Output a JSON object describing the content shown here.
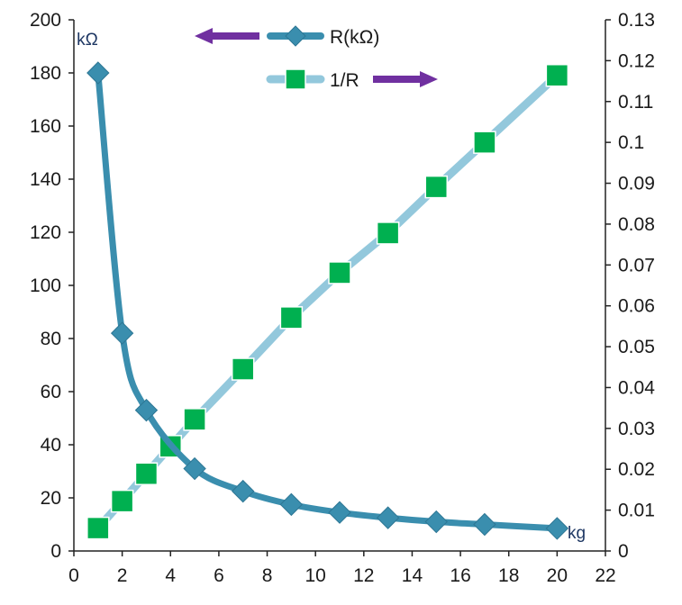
{
  "chart_data": {
    "type": "line",
    "title": "",
    "x_axis": {
      "min": 0,
      "max": 22,
      "step": 2,
      "label": ""
    },
    "y_left": {
      "min": 0,
      "max": 200,
      "step": 20,
      "unit_label": "kΩ"
    },
    "y_right": {
      "min": 0,
      "max": 0.13,
      "step": 0.01
    },
    "x_unit_label": "kg",
    "grid": false,
    "legend_position": "top-center",
    "series": [
      {
        "name": "R(kΩ)",
        "axis": "left",
        "marker": "diamond",
        "color": "#3a8eae",
        "legend_arrow": "left",
        "x": [
          1,
          2,
          3,
          5,
          7,
          9,
          11,
          13,
          15,
          17,
          20
        ],
        "values": [
          180,
          82,
          53,
          31,
          22.5,
          17.5,
          14.5,
          12.5,
          11,
          10,
          8.5
        ]
      },
      {
        "name": "1/R",
        "axis": "right",
        "marker": "square",
        "color": "#93c8dc",
        "marker_color": "#00b050",
        "legend_arrow": "right",
        "x": [
          1,
          2,
          3,
          4,
          5,
          7,
          9,
          11,
          13,
          15,
          17,
          20
        ],
        "values": [
          0.0056,
          0.0122,
          0.0189,
          0.0256,
          0.0322,
          0.0445,
          0.0571,
          0.0681,
          0.0778,
          0.0891,
          0.1,
          0.1164
        ]
      }
    ],
    "arrow_color": "#7030a0"
  }
}
